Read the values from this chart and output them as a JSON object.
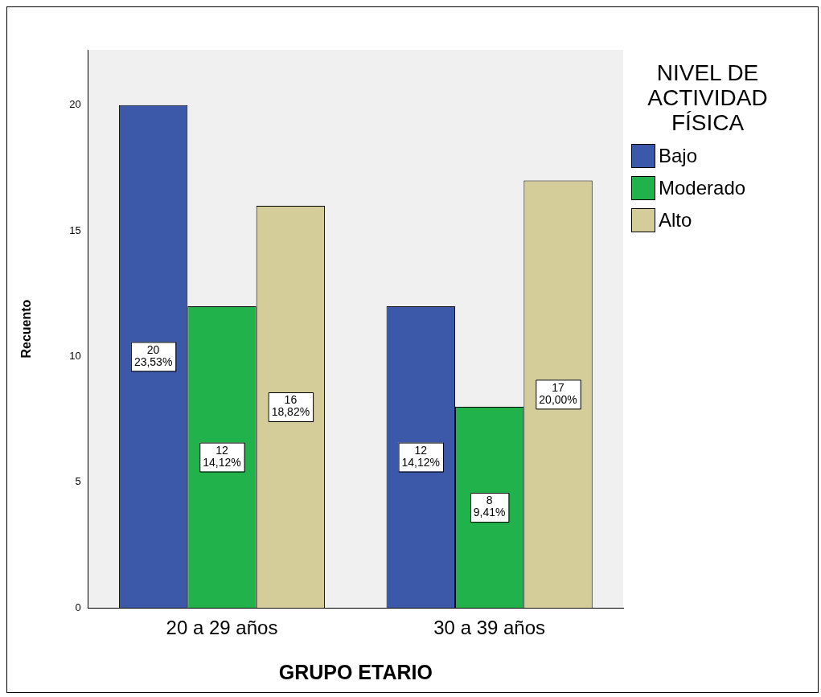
{
  "chart_data": {
    "type": "bar",
    "xlabel": "GRUPO ETARIO",
    "ylabel": "Recuento",
    "legend_title": "NIVEL DE ACTIVIDAD FÍSICA",
    "legend": "right",
    "categories": [
      "20 a 29 años",
      "30 a 39 años"
    ],
    "ylim": [
      0,
      22.2
    ],
    "yticks": [
      0,
      5,
      10,
      15,
      20
    ],
    "grid": false,
    "series": [
      {
        "name": "Bajo",
        "color": "#3c58a8",
        "values": [
          20,
          12
        ],
        "value_labels": [
          "20\n23,53%",
          "12\n14,12%"
        ]
      },
      {
        "name": "Moderado",
        "color": "#22b24c",
        "values": [
          12,
          8
        ],
        "value_labels": [
          "12\n14,12%",
          "8\n9,41%"
        ]
      },
      {
        "name": "Alto",
        "color": "#d4cc99",
        "values": [
          16,
          17
        ],
        "value_labels": [
          "16\n18,82%",
          "17\n20,00%"
        ]
      }
    ]
  }
}
